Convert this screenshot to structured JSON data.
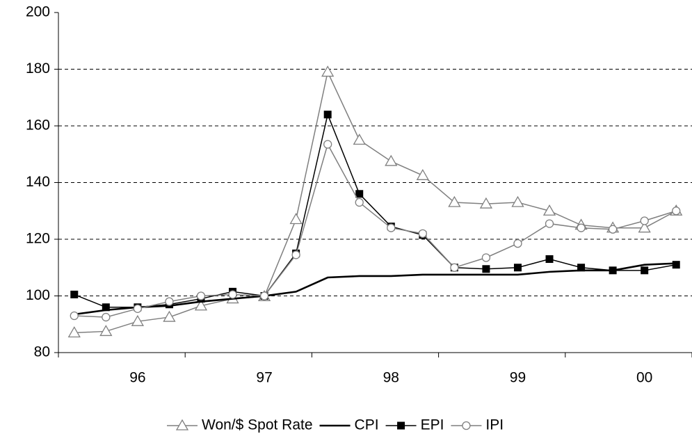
{
  "chart_data": {
    "type": "line",
    "categories": [
      null,
      null,
      "96",
      null,
      null,
      null,
      "97",
      null,
      null,
      null,
      "98",
      null,
      null,
      null,
      "99",
      null,
      null,
      null,
      "00",
      null
    ],
    "series": [
      {
        "name": "Won/$ Spot Rate",
        "color": "#7f7f7f",
        "marker": "triangle",
        "values": [
          87,
          87.5,
          91,
          92.5,
          96.5,
          99,
          99.8,
          127,
          179,
          155,
          147.5,
          142.5,
          133,
          132.5,
          133,
          130,
          125,
          124,
          124,
          130
        ]
      },
      {
        "name": "CPI",
        "color": "#000000",
        "marker": "none",
        "values": [
          93.5,
          95,
          96,
          96.5,
          98,
          99,
          100,
          101.5,
          106.5,
          107,
          107,
          107.5,
          107.5,
          107.5,
          107.5,
          108.5,
          109,
          109,
          111,
          111.5
        ]
      },
      {
        "name": "EPI",
        "color": "#000000",
        "marker": "square",
        "values": [
          100.5,
          96,
          96,
          97,
          99,
          101.5,
          100,
          115,
          164,
          136,
          124.5,
          121.5,
          110,
          109.5,
          110,
          113,
          110,
          109,
          109,
          111
        ]
      },
      {
        "name": "IPI",
        "color": "#7f7f7f",
        "marker": "circle",
        "values": [
          93,
          92.5,
          95.5,
          98,
          100,
          100.5,
          100,
          114.5,
          153.5,
          133,
          124,
          122,
          110,
          113.5,
          118.5,
          125.5,
          124,
          123.5,
          126.5,
          130
        ]
      }
    ],
    "ylim": [
      80,
      200
    ],
    "yticks": [
      80,
      100,
      120,
      140,
      160,
      180,
      200
    ],
    "grid": true,
    "legend": "bottom"
  }
}
